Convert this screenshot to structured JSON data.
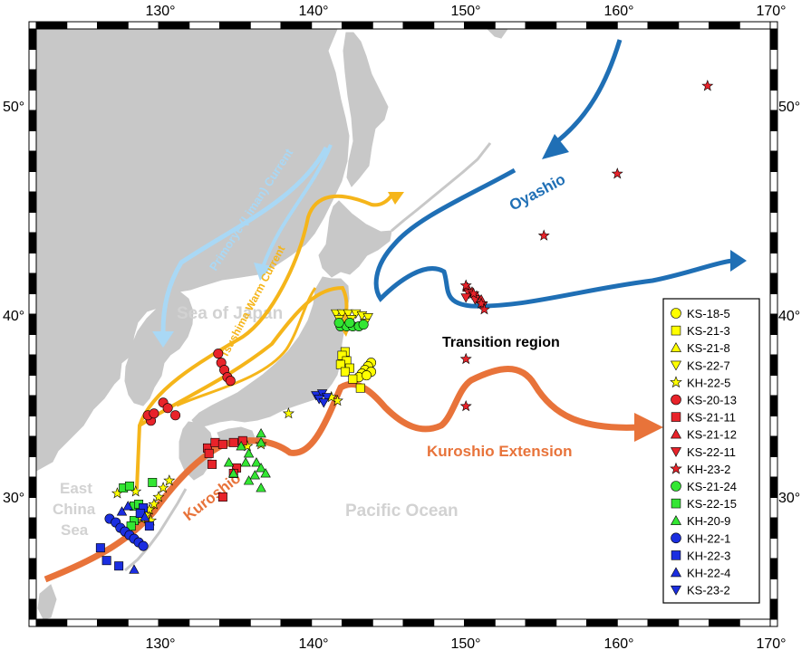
{
  "axes": {
    "top_ticks": [
      "130°",
      "140°",
      "150°",
      "160°",
      "170°"
    ],
    "bottom_ticks": [
      "130°",
      "140°",
      "150°",
      "160°",
      "170°"
    ],
    "left_ticks": [
      "50°",
      "40°",
      "30°"
    ],
    "right_ticks": [
      "50°",
      "40°",
      "30°"
    ],
    "lon_range": [
      122,
      170
    ],
    "lat_range": [
      24,
      53
    ]
  },
  "labels": {
    "sea_of_japan": "Sea of Japan",
    "pacific_ocean": "Pacific Ocean",
    "east_china_sea": [
      "East",
      "China",
      "Sea"
    ],
    "transition_region": "Transition region",
    "oyashio": "Oyashio",
    "kuroshio": "Kuroshio",
    "kuroshio_extension": "Kuroshio Extension",
    "primorye_current": "Primorye (Liman) Current",
    "tsushima_current": "Tsushima Warm Current"
  },
  "colors": {
    "land": "#c8c8c8",
    "oyashio": "#1f6fb5",
    "kuroshio": "#e8733a",
    "tsushima": "#f5b51a",
    "primorye": "#a9d8f5",
    "yellow": "#ffff00",
    "red": "#e8232a",
    "green": "#33e633",
    "blue": "#1b2ee0"
  },
  "legend": [
    {
      "name": "KS-18-5",
      "shape": "circle",
      "color": "#ffff00"
    },
    {
      "name": "KS-21-3",
      "shape": "square",
      "color": "#ffff00"
    },
    {
      "name": "KS-21-8",
      "shape": "triangle",
      "color": "#ffff00"
    },
    {
      "name": "KS-22-7",
      "shape": "invtriangle",
      "color": "#ffff00"
    },
    {
      "name": "KH-22-5",
      "shape": "star",
      "color": "#ffff00"
    },
    {
      "name": "KS-20-13",
      "shape": "circle",
      "color": "#e8232a"
    },
    {
      "name": "KS-21-11",
      "shape": "square",
      "color": "#e8232a"
    },
    {
      "name": "KS-21-12",
      "shape": "triangle",
      "color": "#e8232a"
    },
    {
      "name": "KS-22-11",
      "shape": "invtriangle",
      "color": "#e8232a"
    },
    {
      "name": "KH-23-2",
      "shape": "star",
      "color": "#e8232a"
    },
    {
      "name": "KS-21-24",
      "shape": "circle",
      "color": "#33e633"
    },
    {
      "name": "KS-22-15",
      "shape": "square",
      "color": "#33e633"
    },
    {
      "name": "KH-20-9",
      "shape": "triangle",
      "color": "#33e633"
    },
    {
      "name": "KH-22-1",
      "shape": "circle",
      "color": "#1b2ee0"
    },
    {
      "name": "KH-22-3",
      "shape": "square",
      "color": "#1b2ee0"
    },
    {
      "name": "KH-22-4",
      "shape": "triangle",
      "color": "#1b2ee0"
    },
    {
      "name": "KS-23-2",
      "shape": "invtriangle",
      "color": "#1b2ee0"
    }
  ],
  "stations": [
    {
      "shape": "circle",
      "color": "#ffff00",
      "pts": [
        [
          143.9,
          37.4
        ],
        [
          143.7,
          37.2
        ],
        [
          143.5,
          37.0
        ],
        [
          143.3,
          36.8
        ],
        [
          143.1,
          36.6
        ],
        [
          143.9,
          36.9
        ],
        [
          143.6,
          36.7
        ]
      ]
    },
    {
      "shape": "square",
      "color": "#ffff00",
      "pts": [
        [
          142.2,
          38.0
        ],
        [
          142.0,
          37.8
        ],
        [
          142.3,
          37.5
        ],
        [
          141.9,
          37.3
        ],
        [
          142.5,
          37.1
        ],
        [
          142.2,
          36.9
        ],
        [
          142.7,
          36.5
        ],
        [
          143.2,
          36.0
        ]
      ]
    },
    {
      "shape": "invtriangle",
      "color": "#ffff00",
      "pts": [
        [
          141.6,
          40.1
        ],
        [
          142.0,
          40.1
        ],
        [
          142.4,
          40.1
        ],
        [
          142.9,
          40.1
        ],
        [
          143.3,
          40.0
        ],
        [
          143.7,
          39.9
        ],
        [
          141.8,
          39.8
        ],
        [
          142.6,
          39.8
        ],
        [
          143.5,
          39.6
        ]
      ]
    },
    {
      "shape": "star",
      "color": "#ffff00",
      "pts": [
        [
          127.3,
          30.2
        ],
        [
          128.5,
          30.3
        ],
        [
          130.7,
          30.9
        ],
        [
          130.3,
          30.5
        ],
        [
          130.0,
          30.0
        ],
        [
          129.7,
          29.6
        ],
        [
          129.4,
          29.3
        ],
        [
          129.2,
          29.0
        ],
        [
          128.9,
          28.8
        ],
        [
          129.5,
          28.7
        ],
        [
          135.8,
          32.8
        ],
        [
          136.7,
          32.9
        ],
        [
          138.5,
          34.6
        ],
        [
          141.7,
          35.3
        ],
        [
          141.3,
          35.5
        ]
      ]
    },
    {
      "shape": "circle",
      "color": "#e8232a",
      "pts": [
        [
          129.5,
          34.2
        ],
        [
          129.3,
          34.5
        ],
        [
          129.7,
          34.6
        ],
        [
          130.3,
          35.2
        ],
        [
          130.6,
          34.9
        ],
        [
          131.1,
          34.5
        ],
        [
          133.9,
          37.9
        ],
        [
          134.1,
          37.4
        ],
        [
          134.3,
          37.0
        ],
        [
          134.5,
          36.6
        ],
        [
          134.7,
          36.4
        ]
      ]
    },
    {
      "shape": "square",
      "color": "#e8232a",
      "pts": [
        [
          133.2,
          32.7
        ],
        [
          133.7,
          33.0
        ],
        [
          134.2,
          32.9
        ],
        [
          134.9,
          33.0
        ],
        [
          135.5,
          33.1
        ],
        [
          133.3,
          32.4
        ],
        [
          133.5,
          31.8
        ],
        [
          135.1,
          31.6
        ],
        [
          134.9,
          31.3
        ],
        [
          134.2,
          30.0
        ]
      ]
    },
    {
      "shape": "triangle",
      "color": "#e8232a",
      "pts": [
        [
          150.2,
          41.4
        ],
        [
          150.5,
          41.2
        ],
        [
          150.8,
          41.0
        ],
        [
          151.1,
          40.8
        ]
      ]
    },
    {
      "shape": "invtriangle",
      "color": "#e8232a",
      "pts": [
        [
          150.3,
          41.1
        ],
        [
          150.7,
          40.8
        ],
        [
          151.2,
          40.5
        ],
        [
          150.1,
          40.9
        ]
      ]
    },
    {
      "shape": "star",
      "color": "#e8232a",
      "pts": [
        [
          165.9,
          51.5
        ],
        [
          160.0,
          47.1
        ],
        [
          155.2,
          44.0
        ],
        [
          150.1,
          41.5
        ],
        [
          150.6,
          41.1
        ],
        [
          151.1,
          40.6
        ],
        [
          151.3,
          40.3
        ],
        [
          150.1,
          37.6
        ],
        [
          150.1,
          35.0
        ]
      ]
    },
    {
      "shape": "circle",
      "color": "#33e633",
      "pts": [
        [
          141.9,
          39.4
        ],
        [
          142.3,
          39.4
        ],
        [
          142.7,
          39.4
        ],
        [
          143.1,
          39.4
        ],
        [
          143.4,
          39.5
        ],
        [
          141.8,
          39.6
        ],
        [
          142.5,
          39.6
        ]
      ]
    },
    {
      "shape": "square",
      "color": "#33e633",
      "pts": [
        [
          127.7,
          30.5
        ],
        [
          128.1,
          30.6
        ],
        [
          129.6,
          30.8
        ],
        [
          128.4,
          29.5
        ],
        [
          128.4,
          28.7
        ],
        [
          128.2,
          28.4
        ],
        [
          128.7,
          29.6
        ]
      ]
    },
    {
      "shape": "triangle",
      "color": "#33e633",
      "pts": [
        [
          136.7,
          33.5
        ],
        [
          136.7,
          33.0
        ],
        [
          135.9,
          32.4
        ],
        [
          136.4,
          31.9
        ],
        [
          135.7,
          31.9
        ],
        [
          136.7,
          31.6
        ],
        [
          136.3,
          31.2
        ],
        [
          137.0,
          31.3
        ],
        [
          135.9,
          30.9
        ],
        [
          136.7,
          30.5
        ],
        [
          134.9,
          31.3
        ],
        [
          134.6,
          31.9
        ],
        [
          135.4,
          32.8
        ]
      ]
    },
    {
      "shape": "circle",
      "color": "#1b2ee0",
      "pts": [
        [
          126.8,
          28.8
        ],
        [
          127.2,
          28.6
        ],
        [
          127.5,
          28.3
        ],
        [
          127.8,
          28.1
        ],
        [
          128.1,
          27.9
        ],
        [
          128.4,
          27.7
        ],
        [
          128.7,
          27.5
        ],
        [
          129.0,
          27.3
        ]
      ]
    },
    {
      "shape": "square",
      "color": "#1b2ee0",
      "pts": [
        [
          126.2,
          27.2
        ],
        [
          126.6,
          26.5
        ],
        [
          127.4,
          26.2
        ],
        [
          129.4,
          28.4
        ],
        [
          129.0,
          29.4
        ],
        [
          128.8,
          29.1
        ]
      ]
    },
    {
      "shape": "triangle",
      "color": "#1b2ee0",
      "pts": [
        [
          128.0,
          29.5
        ],
        [
          128.4,
          26.0
        ],
        [
          129.1,
          28.9
        ],
        [
          127.6,
          29.2
        ]
      ]
    },
    {
      "shape": "invtriangle",
      "color": "#1b2ee0",
      "pts": [
        [
          140.3,
          35.6
        ],
        [
          140.7,
          35.7
        ],
        [
          141.0,
          35.5
        ],
        [
          140.5,
          35.4
        ],
        [
          140.8,
          35.2
        ]
      ]
    }
  ]
}
